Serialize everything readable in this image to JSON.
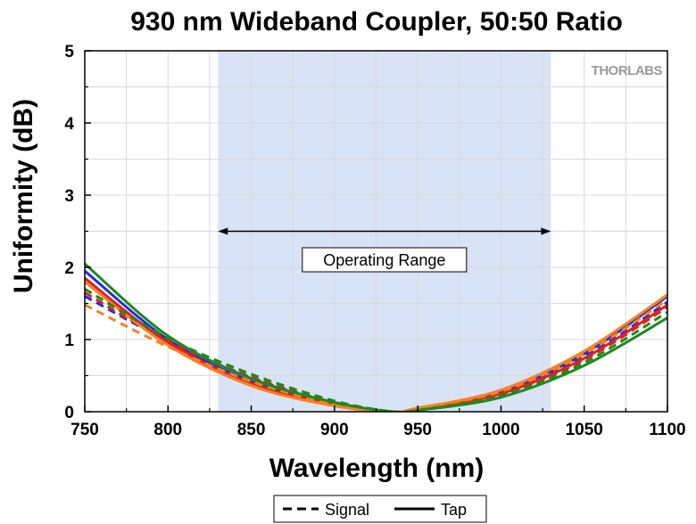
{
  "chart_data": {
    "type": "line",
    "title": "930 nm Wideband Coupler, 50:50 Ratio",
    "xlabel": "Wavelength (nm)",
    "ylabel": "Uniformity (dB)",
    "xlim": [
      750,
      1100
    ],
    "ylim": [
      0,
      5
    ],
    "xticks": [
      750,
      800,
      850,
      900,
      950,
      1000,
      1050,
      1100
    ],
    "yticks": [
      0,
      1,
      2,
      3,
      4,
      5
    ],
    "grid": true,
    "legend_position": "bottom-center",
    "legend": [
      {
        "label": "Signal",
        "style": "dashed"
      },
      {
        "label": "Tap",
        "style": "solid"
      }
    ],
    "shaded_region": {
      "x": [
        830,
        1030
      ],
      "color": "#d9e3f6"
    },
    "annotation": {
      "text": "Operating Range",
      "arrow_x": [
        830,
        1030
      ],
      "arrow_y": 2.5
    },
    "logo": "THORLABS",
    "series": [
      {
        "color": "#1f2fd8",
        "style": "solid",
        "x": [
          750,
          800,
          850,
          900,
          935,
          950,
          1000,
          1050,
          1100
        ],
        "y": [
          1.95,
          1.0,
          0.42,
          0.1,
          0.0,
          0.04,
          0.28,
          0.8,
          1.6
        ]
      },
      {
        "color": "#1f2fd8",
        "style": "dashed",
        "x": [
          750,
          800,
          850,
          900,
          935,
          950,
          1000,
          1050,
          1100
        ],
        "y": [
          1.6,
          0.98,
          0.47,
          0.12,
          0.0,
          0.04,
          0.26,
          0.76,
          1.52
        ]
      },
      {
        "color": "#e02020",
        "style": "solid",
        "x": [
          750,
          800,
          850,
          900,
          935,
          950,
          1000,
          1050,
          1100
        ],
        "y": [
          1.85,
          0.96,
          0.4,
          0.1,
          0.0,
          0.03,
          0.25,
          0.74,
          1.48
        ]
      },
      {
        "color": "#e02020",
        "style": "dashed",
        "x": [
          750,
          800,
          850,
          900,
          935,
          950,
          1000,
          1050,
          1100
        ],
        "y": [
          1.65,
          0.98,
          0.48,
          0.13,
          0.0,
          0.03,
          0.24,
          0.72,
          1.45
        ]
      },
      {
        "color": "#f58220",
        "style": "solid",
        "x": [
          750,
          800,
          850,
          900,
          935,
          950,
          1000,
          1050,
          1100
        ],
        "y": [
          1.8,
          0.92,
          0.36,
          0.08,
          0.0,
          0.05,
          0.3,
          0.84,
          1.62
        ]
      },
      {
        "color": "#f58220",
        "style": "dashed",
        "x": [
          750,
          800,
          850,
          900,
          935,
          950,
          1000,
          1050,
          1100
        ],
        "y": [
          1.48,
          0.9,
          0.42,
          0.1,
          0.0,
          0.05,
          0.28,
          0.8,
          1.55
        ]
      },
      {
        "color": "#1c8a1c",
        "style": "solid",
        "x": [
          750,
          800,
          850,
          900,
          935,
          950,
          1000,
          1050,
          1100
        ],
        "y": [
          2.05,
          1.05,
          0.46,
          0.13,
          0.0,
          0.02,
          0.2,
          0.64,
          1.3
        ]
      },
      {
        "color": "#1c8a1c",
        "style": "dashed",
        "x": [
          750,
          800,
          850,
          900,
          935,
          950,
          1000,
          1050,
          1100
        ],
        "y": [
          1.7,
          1.02,
          0.52,
          0.15,
          0.0,
          0.02,
          0.22,
          0.68,
          1.38
        ]
      }
    ]
  }
}
